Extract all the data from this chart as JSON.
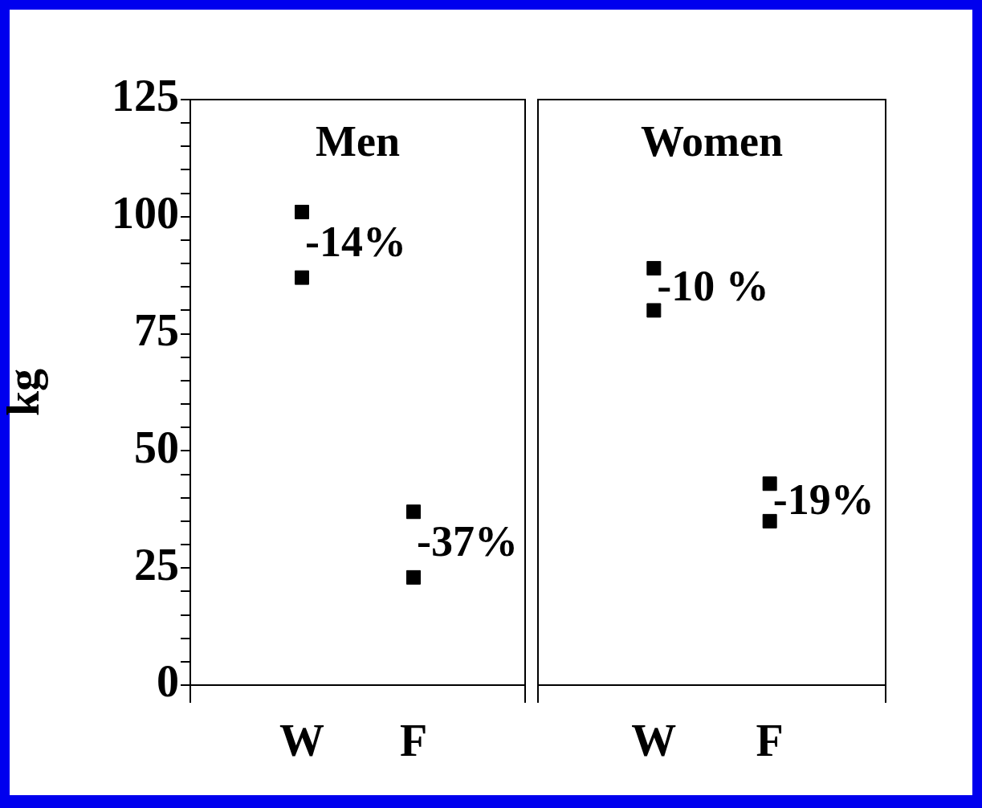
{
  "chart_data": [
    {
      "type": "scatter",
      "categories": [
        null,
        "W",
        "F",
        null
      ],
      "ylabel": "kg",
      "ylim": [
        0,
        125
      ],
      "yticks": [
        0,
        {
          "value": 5,
          "label": null
        },
        {
          "value": 10,
          "label": null
        },
        {
          "value": 15,
          "label": null
        },
        {
          "value": 20,
          "label": null
        },
        25,
        {
          "value": 30,
          "label": null
        },
        {
          "value": 35,
          "label": null
        },
        {
          "value": 40,
          "label": null
        },
        {
          "value": 45,
          "label": null
        },
        50,
        {
          "value": 55,
          "label": null
        },
        {
          "value": 60,
          "label": null
        },
        {
          "value": 65,
          "label": null
        },
        {
          "value": 70,
          "label": null
        },
        75,
        {
          "value": 80,
          "label": null
        },
        {
          "value": 85,
          "label": null
        },
        {
          "value": 90,
          "label": null
        },
        {
          "value": 95,
          "label": null
        },
        100,
        {
          "value": 105,
          "label": null
        },
        {
          "value": 110,
          "label": null
        },
        {
          "value": 115,
          "label": null
        },
        {
          "value": 120,
          "label": null
        },
        125
      ],
      "marker": "square",
      "series": [
        {
          "color": "#000000",
          "values": [
            null,
            101,
            37,
            null
          ]
        },
        {
          "color": "#000000",
          "values": [
            null,
            87,
            23,
            null
          ]
        }
      ],
      "annotations": [
        "Men",
        "-14%",
        "-37%"
      ]
    },
    {
      "type": "scatter",
      "categories": [
        null,
        "W",
        "F",
        null
      ],
      "ylim": [
        0,
        125
      ],
      "tick_labels": "x",
      "marker": "square",
      "series": [
        {
          "color": "#000000",
          "values": [
            null,
            89,
            43,
            null
          ]
        },
        {
          "color": "#000000",
          "values": [
            null,
            80,
            35,
            null
          ]
        }
      ],
      "annotations": [
        "Women",
        "-10 %",
        "-19%"
      ]
    }
  ]
}
